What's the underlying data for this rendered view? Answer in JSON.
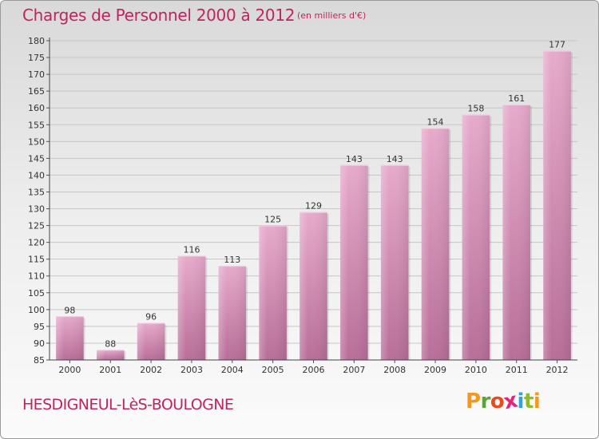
{
  "header": {
    "title": "Charges de Personnel 2000 à 2012",
    "subtitle": "(en milliers d'€)"
  },
  "footer": {
    "town": "HESDIGNEUL-LèS-BOULOGNE",
    "logo_letters": [
      "P",
      "r",
      "o",
      "x",
      "i",
      "t",
      "i"
    ],
    "logo_colors": [
      "#f39a1e",
      "#5aa43a",
      "#e84b1c",
      "#e0257a",
      "#2ea3dc",
      "#8cbc2c",
      "#f39a1e"
    ]
  },
  "chart_data": {
    "type": "bar",
    "title": "Charges de Personnel 2000 à 2012",
    "subtitle": "(en milliers d'€)",
    "categories": [
      "2000",
      "2001",
      "2002",
      "2003",
      "2004",
      "2005",
      "2006",
      "2007",
      "2008",
      "2009",
      "2010",
      "2011",
      "2012"
    ],
    "values": [
      98,
      88,
      96,
      116,
      113,
      125,
      129,
      143,
      143,
      154,
      158,
      161,
      177
    ],
    "ylim": [
      85,
      180
    ],
    "yticks": [
      85,
      90,
      95,
      100,
      105,
      110,
      115,
      120,
      125,
      130,
      135,
      140,
      145,
      150,
      155,
      160,
      165,
      170,
      175,
      180
    ],
    "grid": true,
    "bar_color": "#d98bb5"
  }
}
